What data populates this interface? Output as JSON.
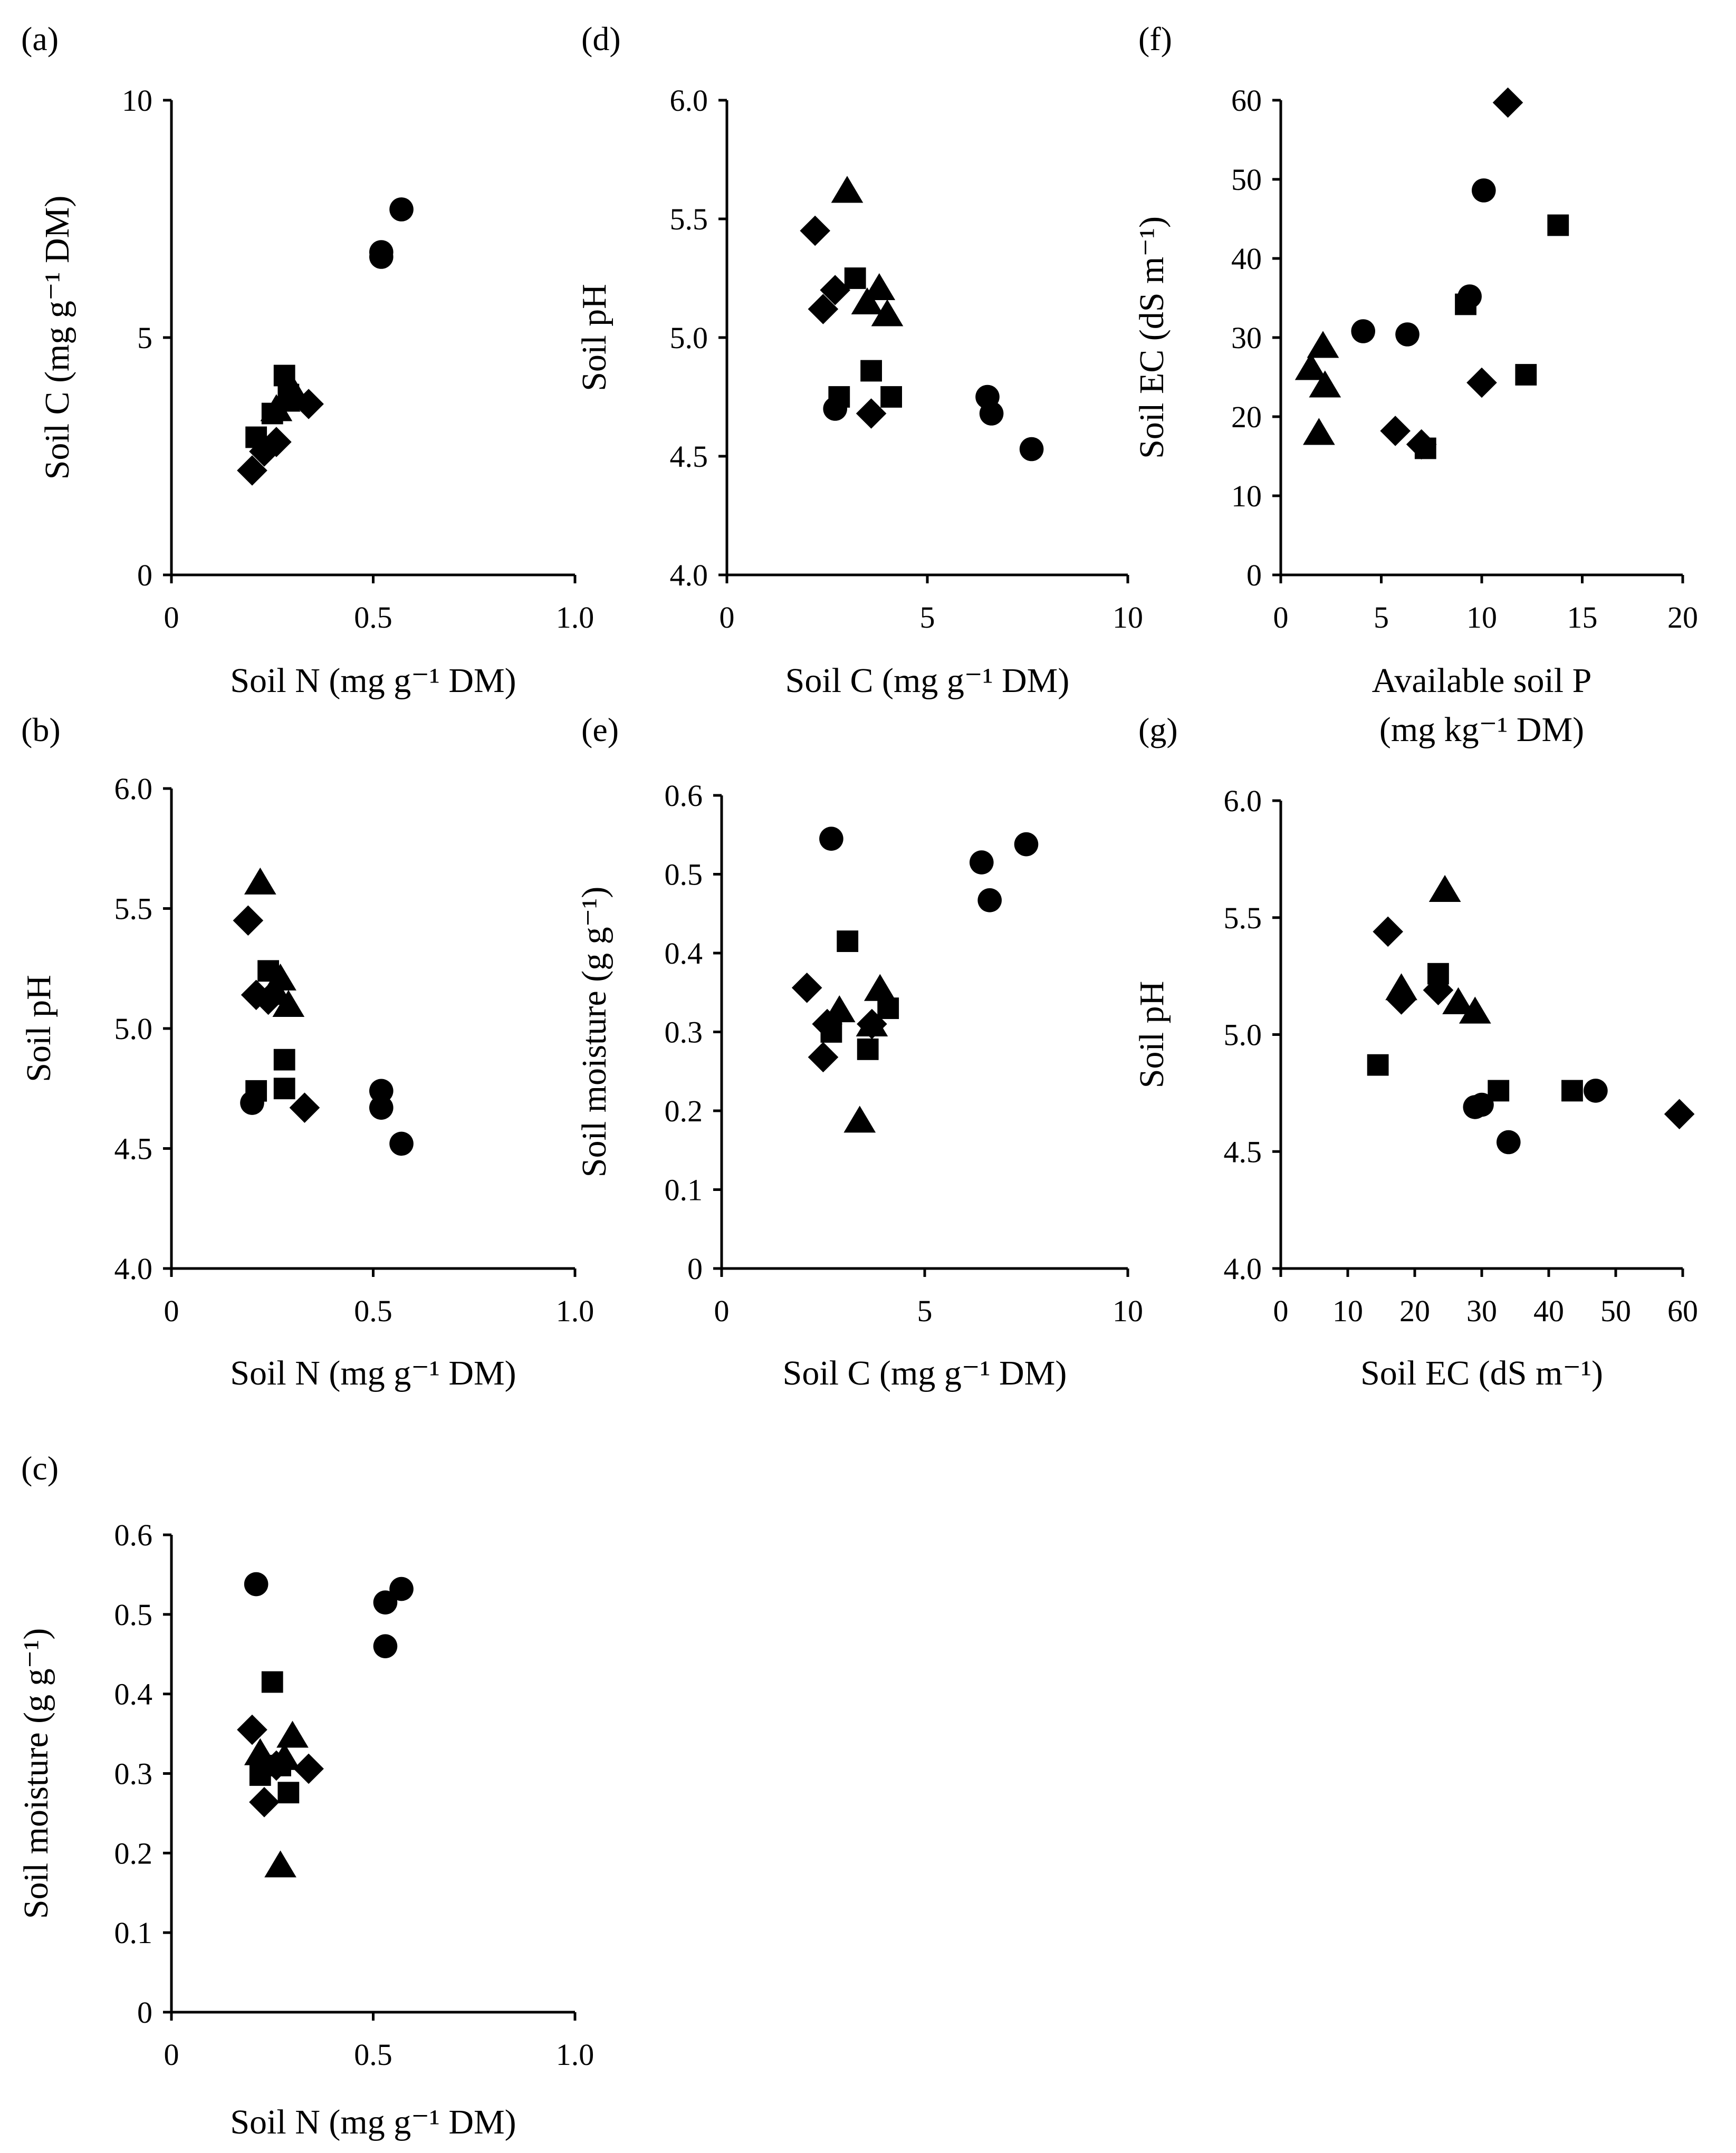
{
  "chart_data": [
    {
      "id": "a",
      "type": "scatter",
      "panel_label": "(a)",
      "xlabel": "Soil N (mg g⁻¹ DM)",
      "ylabel": "Soil C (mg g⁻¹ DM)",
      "xlim": [
        0,
        1.0
      ],
      "ylim": [
        0,
        10
      ],
      "xticks": [
        "0",
        "0.5",
        "1.0"
      ],
      "yticks": [
        "0",
        "5",
        "10"
      ],
      "series": [
        {
          "name": "circle",
          "marker": "circle",
          "points": [
            [
              0.52,
              6.8
            ],
            [
              0.52,
              6.7
            ],
            [
              0.57,
              7.7
            ]
          ]
        },
        {
          "name": "square",
          "marker": "square",
          "points": [
            [
              0.21,
              2.9
            ],
            [
              0.25,
              3.4
            ],
            [
              0.28,
              4.2
            ],
            [
              0.29,
              3.8
            ]
          ]
        },
        {
          "name": "diamond",
          "marker": "diamond",
          "points": [
            [
              0.2,
              2.2
            ],
            [
              0.23,
              2.6
            ],
            [
              0.26,
              2.8
            ],
            [
              0.34,
              3.6
            ]
          ]
        },
        {
          "name": "triangle",
          "marker": "triangle",
          "points": [
            [
              0.26,
              3.5
            ],
            [
              0.28,
              3.7
            ],
            [
              0.3,
              3.9
            ]
          ]
        }
      ]
    },
    {
      "id": "b",
      "type": "scatter",
      "panel_label": "(b)",
      "xlabel": "Soil N (mg g⁻¹ DM)",
      "ylabel": "Soil pH",
      "xlim": [
        0,
        1.0
      ],
      "ylim": [
        4.0,
        6.0
      ],
      "xticks": [
        "0",
        "0.5",
        "1.0"
      ],
      "yticks": [
        "4.0",
        "4.5",
        "5.0",
        "5.5",
        "6.0"
      ],
      "series": [
        {
          "name": "circle",
          "marker": "circle",
          "points": [
            [
              0.2,
              4.69
            ],
            [
              0.52,
              4.74
            ],
            [
              0.52,
              4.67
            ],
            [
              0.57,
              4.52
            ]
          ]
        },
        {
          "name": "square",
          "marker": "square",
          "points": [
            [
              0.21,
              4.74
            ],
            [
              0.24,
              5.24
            ],
            [
              0.28,
              4.87
            ],
            [
              0.28,
              4.75
            ]
          ]
        },
        {
          "name": "diamond",
          "marker": "diamond",
          "points": [
            [
              0.19,
              5.45
            ],
            [
              0.21,
              5.14
            ],
            [
              0.24,
              5.12
            ],
            [
              0.33,
              4.67
            ]
          ]
        },
        {
          "name": "triangle",
          "marker": "triangle",
          "points": [
            [
              0.22,
              5.61
            ],
            [
              0.27,
              5.21
            ],
            [
              0.29,
              5.1
            ],
            [
              0.26,
              5.15
            ]
          ]
        }
      ]
    },
    {
      "id": "c",
      "type": "scatter",
      "panel_label": "(c)",
      "xlabel": "Soil N (mg g⁻¹ DM)",
      "ylabel": "Soil moisture (g g⁻¹)",
      "xlim": [
        0,
        1.0
      ],
      "ylim": [
        0,
        0.6
      ],
      "xticks": [
        "0",
        "0.5",
        "1.0"
      ],
      "yticks": [
        "0",
        "0.1",
        "0.2",
        "0.3",
        "0.4",
        "0.5",
        "0.6"
      ],
      "series": [
        {
          "name": "circle",
          "marker": "circle",
          "points": [
            [
              0.21,
              0.538
            ],
            [
              0.53,
              0.515
            ],
            [
              0.57,
              0.532
            ],
            [
              0.53,
              0.46
            ]
          ]
        },
        {
          "name": "square",
          "marker": "square",
          "points": [
            [
              0.25,
              0.415
            ],
            [
              0.22,
              0.298
            ],
            [
              0.29,
              0.276
            ],
            [
              0.27,
              0.31
            ]
          ]
        },
        {
          "name": "diamond",
          "marker": "diamond",
          "points": [
            [
              0.2,
              0.355
            ],
            [
              0.23,
              0.264
            ],
            [
              0.34,
              0.306
            ],
            [
              0.26,
              0.31
            ]
          ]
        },
        {
          "name": "triangle",
          "marker": "triangle",
          "points": [
            [
              0.22,
              0.326
            ],
            [
              0.3,
              0.348
            ],
            [
              0.27,
              0.185
            ],
            [
              0.28,
              0.32
            ]
          ]
        }
      ]
    },
    {
      "id": "d",
      "type": "scatter",
      "panel_label": "(d)",
      "xlabel": "Soil C (mg g⁻¹ DM)",
      "ylabel": "Soil pH",
      "xlim": [
        0,
        10
      ],
      "ylim": [
        4.0,
        6.0
      ],
      "xticks": [
        "0",
        "5",
        "10"
      ],
      "yticks": [
        "4.0",
        "4.5",
        "5.0",
        "5.5",
        "6.0"
      ],
      "series": [
        {
          "name": "circle",
          "marker": "circle",
          "points": [
            [
              2.7,
              4.7
            ],
            [
              6.5,
              4.75
            ],
            [
              6.6,
              4.68
            ],
            [
              7.6,
              4.53
            ]
          ]
        },
        {
          "name": "square",
          "marker": "square",
          "points": [
            [
              2.8,
              4.75
            ],
            [
              3.2,
              5.25
            ],
            [
              3.6,
              4.86
            ],
            [
              4.1,
              4.75
            ]
          ]
        },
        {
          "name": "diamond",
          "marker": "diamond",
          "points": [
            [
              2.2,
              5.45
            ],
            [
              2.4,
              5.12
            ],
            [
              2.7,
              5.2
            ],
            [
              3.6,
              4.68
            ]
          ]
        },
        {
          "name": "triangle",
          "marker": "triangle",
          "points": [
            [
              3.0,
              5.62
            ],
            [
              3.5,
              5.15
            ],
            [
              3.8,
              5.21
            ],
            [
              4.0,
              5.1
            ]
          ]
        }
      ]
    },
    {
      "id": "e",
      "type": "scatter",
      "panel_label": "(e)",
      "xlabel": "Soil C (mg g⁻¹ DM)",
      "ylabel": "Soil moisture (g g⁻¹)",
      "xlim": [
        0,
        10
      ],
      "ylim": [
        0,
        0.6
      ],
      "xticks": [
        "0",
        "5",
        "10"
      ],
      "yticks": [
        "0",
        "0.1",
        "0.2",
        "0.3",
        "0.4",
        "0.5",
        "0.6"
      ],
      "series": [
        {
          "name": "circle",
          "marker": "circle",
          "points": [
            [
              2.7,
              0.545
            ],
            [
              6.4,
              0.515
            ],
            [
              7.5,
              0.538
            ],
            [
              6.6,
              0.467
            ]
          ]
        },
        {
          "name": "square",
          "marker": "square",
          "points": [
            [
              3.1,
              0.415
            ],
            [
              2.7,
              0.3
            ],
            [
              3.6,
              0.278
            ],
            [
              4.1,
              0.33
            ]
          ]
        },
        {
          "name": "diamond",
          "marker": "diamond",
          "points": [
            [
              2.1,
              0.356
            ],
            [
              2.5,
              0.268
            ],
            [
              3.7,
              0.31
            ],
            [
              2.6,
              0.31
            ]
          ]
        },
        {
          "name": "triangle",
          "marker": "triangle",
          "points": [
            [
              2.9,
              0.328
            ],
            [
              3.9,
              0.355
            ],
            [
              3.4,
              0.188
            ],
            [
              3.7,
              0.31
            ]
          ]
        }
      ]
    },
    {
      "id": "f",
      "type": "scatter",
      "panel_label": "(f)",
      "xlabel": "Available soil P",
      "xlabel_line2": "(mg kg⁻¹ DM)",
      "ylabel": "Soil EC (dS m⁻¹)",
      "xlim": [
        0,
        20
      ],
      "ylim": [
        0,
        60
      ],
      "xticks": [
        "0",
        "5",
        "10",
        "15",
        "20"
      ],
      "yticks": [
        "0",
        "10",
        "20",
        "30",
        "40",
        "50",
        "60"
      ],
      "series": [
        {
          "name": "circle",
          "marker": "circle",
          "points": [
            [
              4.1,
              30.8
            ],
            [
              6.3,
              30.4
            ],
            [
              9.4,
              35.2
            ],
            [
              10.1,
              48.6
            ]
          ]
        },
        {
          "name": "square",
          "marker": "square",
          "points": [
            [
              7.2,
              16.0
            ],
            [
              9.2,
              34.2
            ],
            [
              12.2,
              25.3
            ],
            [
              13.8,
              44.2
            ]
          ]
        },
        {
          "name": "diamond",
          "marker": "diamond",
          "points": [
            [
              5.7,
              18.2
            ],
            [
              7.0,
              16.5
            ],
            [
              10.0,
              24.3
            ],
            [
              11.3,
              59.7
            ]
          ]
        },
        {
          "name": "triangle",
          "marker": "triangle",
          "points": [
            [
              1.5,
              26.2
            ],
            [
              2.1,
              29.0
            ],
            [
              2.2,
              24.0
            ],
            [
              1.9,
              18.0
            ]
          ]
        }
      ]
    },
    {
      "id": "g",
      "type": "scatter",
      "panel_label": "(g)",
      "xlabel": "Soil EC (dS m⁻¹)",
      "ylabel": "Soil pH",
      "xlim": [
        0,
        60
      ],
      "ylim": [
        4.0,
        6.0
      ],
      "xticks": [
        "0",
        "10",
        "20",
        "30",
        "40",
        "50",
        "60"
      ],
      "yticks": [
        "4.0",
        "4.5",
        "5.0",
        "5.5",
        "6.0"
      ],
      "series": [
        {
          "name": "circle",
          "marker": "circle",
          "points": [
            [
              29.0,
              4.69
            ],
            [
              30.0,
              4.7
            ],
            [
              34.0,
              4.54
            ],
            [
              47.0,
              4.76
            ]
          ]
        },
        {
          "name": "square",
          "marker": "square",
          "points": [
            [
              14.5,
              4.87
            ],
            [
              23.5,
              5.26
            ],
            [
              32.5,
              4.76
            ],
            [
              43.5,
              4.76
            ]
          ]
        },
        {
          "name": "diamond",
          "marker": "diamond",
          "points": [
            [
              16.0,
              5.44
            ],
            [
              18.0,
              5.15
            ],
            [
              23.5,
              5.19
            ],
            [
              59.5,
              4.66
            ]
          ]
        },
        {
          "name": "triangle",
          "marker": "triangle",
          "points": [
            [
              18.0,
              5.2
            ],
            [
              24.5,
              5.62
            ],
            [
              26.5,
              5.14
            ],
            [
              29.0,
              5.1
            ]
          ]
        }
      ]
    }
  ]
}
